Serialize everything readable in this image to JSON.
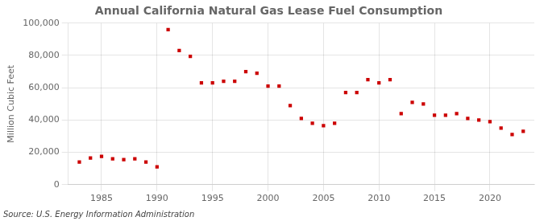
{
  "chart_data": {
    "type": "scatter",
    "title": "Annual California Natural Gas Lease Fuel Consumption",
    "ylabel": "Million Cubic Feet",
    "annotation": "Source: U.S. Energy Information Administration",
    "x": [
      1983,
      1984,
      1985,
      1986,
      1987,
      1988,
      1989,
      1990,
      1991,
      1992,
      1993,
      1994,
      1995,
      1996,
      1997,
      1998,
      1999,
      2000,
      2001,
      2002,
      2003,
      2004,
      2005,
      2006,
      2007,
      2008,
      2009,
      2010,
      2011,
      2012,
      2013,
      2014,
      2015,
      2016,
      2017,
      2018,
      2019,
      2020,
      2021,
      2022,
      2023
    ],
    "values": [
      14000,
      16500,
      17500,
      16000,
      15500,
      16000,
      14000,
      11000,
      96000,
      83000,
      79500,
      63000,
      63000,
      64000,
      64000,
      70000,
      69000,
      61000,
      61000,
      49000,
      41000,
      38000,
      36500,
      38000,
      57000,
      57000,
      65000,
      63000,
      65000,
      44000,
      51000,
      50000,
      43000,
      43000,
      44000,
      41000,
      40000,
      39000,
      35000,
      31000,
      33000
    ],
    "color": "#cc0000",
    "marker": "square",
    "xlim": [
      1982,
      2024
    ],
    "xticks": [
      1985,
      1990,
      1995,
      2000,
      2005,
      2010,
      2015,
      2020
    ],
    "ylim": [
      0,
      100000
    ],
    "yticks": [
      0,
      {
        "value": 20000,
        "label": "20,000"
      },
      {
        "value": 40000,
        "label": "40,000"
      },
      {
        "value": 60000,
        "label": "60,000"
      },
      {
        "value": 80000,
        "label": "80,000"
      },
      {
        "value": 100000,
        "label": "100,000"
      }
    ],
    "grid": true
  }
}
